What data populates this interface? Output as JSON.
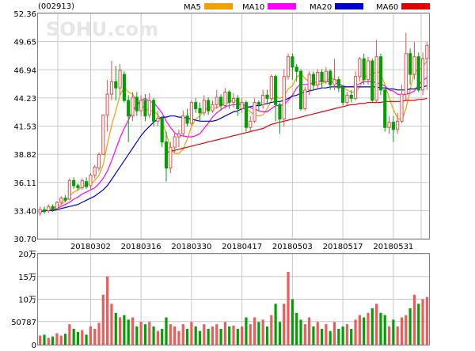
{
  "header": {
    "code": "(002913)",
    "watermark": "SOHU.com"
  },
  "legend": [
    {
      "name": "MA5",
      "color": "#f0a000"
    },
    {
      "name": "MA10",
      "color": "#ff00ff"
    },
    {
      "name": "MA20",
      "color": "#0000cc"
    },
    {
      "name": "MA60",
      "color": "#e00000"
    }
  ],
  "chart_data": [
    {
      "type": "candlestick",
      "ylim": [
        30.7,
        52.36
      ],
      "ytick_labels": [
        "52.36",
        "49.65",
        "46.94",
        "44.23",
        "41.53",
        "38.82",
        "36.11",
        "33.40",
        "30.70"
      ],
      "xtick_labels": [
        {
          "label": "20180302",
          "index": 12
        },
        {
          "label": "20180316",
          "index": 24
        },
        {
          "label": "20180330",
          "index": 36
        },
        {
          "label": "20180417",
          "index": 48
        },
        {
          "label": "20180503",
          "index": 60
        },
        {
          "label": "20180517",
          "index": 72
        },
        {
          "label": "20180531",
          "index": 84
        }
      ],
      "candles": [
        [
          33.2,
          33.5,
          32.9,
          33.8
        ],
        [
          33.5,
          33.3,
          33.1,
          33.8
        ],
        [
          33.4,
          33.8,
          33.2,
          34.0
        ],
        [
          33.8,
          33.5,
          33.3,
          34.0
        ],
        [
          33.6,
          34.2,
          33.5,
          34.3
        ],
        [
          34.2,
          34.6,
          34.0,
          34.8
        ],
        [
          34.6,
          34.4,
          34.2,
          34.9
        ],
        [
          34.5,
          36.3,
          34.4,
          36.5
        ],
        [
          36.3,
          35.8,
          35.5,
          36.6
        ],
        [
          35.8,
          35.6,
          35.3,
          36.0
        ],
        [
          35.6,
          36.3,
          35.4,
          36.5
        ],
        [
          36.2,
          35.7,
          35.5,
          36.6
        ],
        [
          35.8,
          36.8,
          35.4,
          37.0
        ],
        [
          36.8,
          37.6,
          36.5,
          37.8
        ],
        [
          37.5,
          38.8,
          37.2,
          39.0
        ],
        [
          38.8,
          42.6,
          38.8,
          42.6
        ],
        [
          42.6,
          44.6,
          41.0,
          46.0
        ],
        [
          44.6,
          45.8,
          44.0,
          47.8
        ],
        [
          45.8,
          45.2,
          44.0,
          47.3
        ],
        [
          45.2,
          46.9,
          44.5,
          47.5
        ],
        [
          46.5,
          44.0,
          43.8,
          46.8
        ],
        [
          44.0,
          42.5,
          40.0,
          44.5
        ],
        [
          42.5,
          44.3,
          42.0,
          44.8
        ],
        [
          44.3,
          43.0,
          42.5,
          44.8
        ],
        [
          43.0,
          44.0,
          42.5,
          44.5
        ],
        [
          44.0,
          42.5,
          42.0,
          44.6
        ],
        [
          42.6,
          44.0,
          42.3,
          44.7
        ],
        [
          44.0,
          42.0,
          41.5,
          44.2
        ],
        [
          42.0,
          42.3,
          41.5,
          43.0
        ],
        [
          42.3,
          40.0,
          39.5,
          42.5
        ],
        [
          40.0,
          37.5,
          36.2,
          41.0
        ],
        [
          37.5,
          39.5,
          37.0,
          40.0
        ],
        [
          39.5,
          40.5,
          39.0,
          41.0
        ],
        [
          40.5,
          40.8,
          39.5,
          41.2
        ],
        [
          40.8,
          42.5,
          40.5,
          43.0
        ],
        [
          42.5,
          41.8,
          41.5,
          43.2
        ],
        [
          41.8,
          43.8,
          41.6,
          44.0
        ],
        [
          43.8,
          43.2,
          42.8,
          44.2
        ],
        [
          43.2,
          42.8,
          42.0,
          43.8
        ],
        [
          42.8,
          44.0,
          42.5,
          44.5
        ],
        [
          44.0,
          43.0,
          42.6,
          44.3
        ],
        [
          43.0,
          43.6,
          42.8,
          44.0
        ],
        [
          43.6,
          44.3,
          43.2,
          45.0
        ],
        [
          44.3,
          43.5,
          43.0,
          44.6
        ],
        [
          43.5,
          44.8,
          43.2,
          45.2
        ],
        [
          44.8,
          43.8,
          43.2,
          45.0
        ],
        [
          43.8,
          44.2,
          43.3,
          44.7
        ],
        [
          44.2,
          43.2,
          42.5,
          44.5
        ],
        [
          43.2,
          43.8,
          42.8,
          44.2
        ],
        [
          43.8,
          41.4,
          41.0,
          44.0
        ],
        [
          41.4,
          42.0,
          41.0,
          42.5
        ],
        [
          42.0,
          43.8,
          41.8,
          44.2
        ],
        [
          43.8,
          43.6,
          43.0,
          44.0
        ],
        [
          43.6,
          44.5,
          43.2,
          45.0
        ],
        [
          44.5,
          44.2,
          43.6,
          45.0
        ],
        [
          44.2,
          46.3,
          44.0,
          46.5
        ],
        [
          46.3,
          43.6,
          42.0,
          46.5
        ],
        [
          43.6,
          42.2,
          40.8,
          43.8
        ],
        [
          42.2,
          46.3,
          41.5,
          47.0
        ],
        [
          46.3,
          48.2,
          46.0,
          48.5
        ],
        [
          48.2,
          47.2,
          46.0,
          48.5
        ],
        [
          47.2,
          46.8,
          45.8,
          47.5
        ],
        [
          46.8,
          43.2,
          43.0,
          47.0
        ],
        [
          43.2,
          45.0,
          43.0,
          45.3
        ],
        [
          45.0,
          46.5,
          44.5,
          46.8
        ],
        [
          46.5,
          45.5,
          45.0,
          46.8
        ],
        [
          45.5,
          46.7,
          45.2,
          47.0
        ],
        [
          46.7,
          45.8,
          45.2,
          47.0
        ],
        [
          45.8,
          46.8,
          45.6,
          47.2
        ],
        [
          46.8,
          45.5,
          45.0,
          47.0
        ],
        [
          45.5,
          46.0,
          45.0,
          48.0
        ],
        [
          46.0,
          45.2,
          44.8,
          46.3
        ],
        [
          45.2,
          43.8,
          43.5,
          45.5
        ],
        [
          43.8,
          44.5,
          43.5,
          44.8
        ],
        [
          44.5,
          44.2,
          43.8,
          45.0
        ],
        [
          44.2,
          46.3,
          44.0,
          46.8
        ],
        [
          46.3,
          48.0,
          45.8,
          48.2
        ],
        [
          48.0,
          46.0,
          45.5,
          48.5
        ],
        [
          46.0,
          47.8,
          45.5,
          48.2
        ],
        [
          47.8,
          44.0,
          43.8,
          48.0
        ],
        [
          44.0,
          48.2,
          43.8,
          49.8
        ],
        [
          48.2,
          45.0,
          44.5,
          48.5
        ],
        [
          45.0,
          41.4,
          41.0,
          45.2
        ],
        [
          41.4,
          41.9,
          40.8,
          42.5
        ],
        [
          41.9,
          41.2,
          40.0,
          42.5
        ],
        [
          41.2,
          42.0,
          40.8,
          42.8
        ],
        [
          42.0,
          44.6,
          41.8,
          45.5
        ],
        [
          44.6,
          48.5,
          44.0,
          50.5
        ],
        [
          48.5,
          46.5,
          45.5,
          49.0
        ],
        [
          46.5,
          48.2,
          46.0,
          49.6
        ],
        [
          48.2,
          45.0,
          44.8,
          48.6
        ],
        [
          45.0,
          48.0,
          44.5,
          48.6
        ],
        [
          48.0,
          49.3,
          45.0,
          49.6
        ]
      ],
      "ma5": [
        33.3,
        33.4,
        33.5,
        33.6,
        33.8,
        34.0,
        34.3,
        34.8,
        35.2,
        35.4,
        35.7,
        35.9,
        36.0,
        36.3,
        36.8,
        37.8,
        39.8,
        41.6,
        43.0,
        44.5,
        45.3,
        44.8,
        44.6,
        44.0,
        43.5,
        43.2,
        43.0,
        43.0,
        42.6,
        42.0,
        40.8,
        39.5,
        38.9,
        38.9,
        39.3,
        40.3,
        41.5,
        42.2,
        42.5,
        43.0,
        43.4,
        43.2,
        43.3,
        43.5,
        43.7,
        43.8,
        44.1,
        43.8,
        43.7,
        43.3,
        42.9,
        42.6,
        42.5,
        42.6,
        43.2,
        44.0,
        44.4,
        44.2,
        44.4,
        45.1,
        45.4,
        46.2,
        46.6,
        46.1,
        45.8,
        45.4,
        45.5,
        45.6,
        45.8,
        46.2,
        46.0,
        45.8,
        45.2,
        45.0,
        44.8,
        44.8,
        45.3,
        46.2,
        46.5,
        46.5,
        46.8,
        46.6,
        45.5,
        44.3,
        43.1,
        42.3,
        42.1,
        43.2,
        45.0,
        46.8,
        46.9,
        47.2,
        47.8
      ],
      "ma10": [
        33.3,
        33.4,
        33.4,
        33.5,
        33.6,
        33.8,
        34.0,
        34.2,
        34.5,
        34.7,
        35.0,
        35.2,
        35.4,
        35.6,
        36.0,
        36.5,
        37.2,
        38.2,
        39.3,
        40.4,
        41.3,
        42.1,
        43.0,
        43.5,
        44.0,
        44.2,
        43.9,
        43.8,
        43.3,
        42.8,
        42.0,
        41.4,
        40.9,
        40.6,
        40.6,
        40.5,
        40.5,
        40.6,
        40.8,
        41.3,
        41.8,
        42.4,
        42.8,
        43.1,
        43.4,
        43.5,
        43.6,
        43.6,
        43.6,
        43.5,
        43.3,
        43.2,
        43.0,
        42.9,
        42.9,
        43.2,
        43.5,
        43.5,
        43.6,
        44.0,
        44.5,
        45.2,
        45.6,
        45.5,
        45.6,
        45.7,
        45.8,
        45.9,
        45.8,
        45.8,
        45.7,
        45.6,
        45.4,
        45.3,
        45.3,
        45.4,
        45.6,
        45.8,
        45.8,
        45.8,
        45.7,
        45.6,
        45.4,
        45.0,
        44.9,
        44.6,
        44.5,
        44.6,
        44.7,
        44.9,
        45.5,
        45.9,
        46.2
      ],
      "ma20": [
        33.3,
        33.4,
        33.4,
        33.4,
        33.5,
        33.6,
        33.7,
        33.8,
        33.9,
        34.0,
        34.2,
        34.4,
        34.6,
        34.8,
        35.1,
        35.4,
        35.8,
        36.4,
        37.0,
        37.6,
        38.2,
        38.8,
        39.4,
        40.0,
        40.6,
        41.1,
        41.5,
        41.9,
        42.2,
        42.4,
        42.4,
        42.5,
        42.5,
        42.4,
        42.4,
        42.3,
        42.2,
        42.1,
        42.0,
        42.0,
        42.0,
        42.0,
        42.1,
        42.3,
        42.5,
        42.7,
        42.9,
        43.0,
        43.2,
        43.3,
        43.4,
        43.5,
        43.5,
        43.6,
        43.7,
        43.8,
        43.9,
        43.9,
        44.0,
        44.2,
        44.4,
        44.5,
        44.7,
        44.8,
        44.9,
        45.0,
        45.1,
        45.2,
        45.2,
        45.3,
        45.3,
        45.3,
        45.3,
        45.3,
        45.3,
        45.3,
        45.3,
        45.3,
        45.3,
        45.3,
        45.3,
        45.2,
        45.2,
        45.1,
        45.1,
        45.0,
        45.0,
        45.0,
        45.1,
        45.1,
        45.2,
        45.3,
        45.4
      ],
      "ma60": [
        null,
        null,
        null,
        null,
        null,
        null,
        null,
        null,
        null,
        null,
        null,
        null,
        null,
        null,
        null,
        null,
        null,
        null,
        null,
        null,
        null,
        null,
        null,
        null,
        null,
        null,
        null,
        null,
        null,
        null,
        39.0,
        39.1,
        39.2,
        39.3,
        39.4,
        39.5,
        39.6,
        39.7,
        39.8,
        39.9,
        40.0,
        40.1,
        40.2,
        40.3,
        40.4,
        40.5,
        40.6,
        40.7,
        40.8,
        40.9,
        41.0,
        41.1,
        41.2,
        41.3,
        41.5,
        41.7,
        41.8,
        41.9,
        42.0,
        42.1,
        42.2,
        42.3,
        42.4,
        42.5,
        42.6,
        42.7,
        42.8,
        42.9,
        43.0,
        43.1,
        43.2,
        43.3,
        43.4,
        43.5,
        43.6,
        43.6,
        43.7,
        43.7,
        43.8,
        43.8,
        43.8,
        43.8,
        43.9,
        43.9,
        43.9,
        43.9,
        43.9,
        44.0,
        44.0,
        44.0,
        44.1,
        44.1,
        44.2
      ]
    },
    {
      "type": "bar",
      "ylim": [
        0,
        200000
      ],
      "ytick_labels": [
        "20万",
        "15万",
        "10万",
        "50787",
        "0"
      ],
      "volume": [
        20000,
        22000,
        15000,
        18000,
        25000,
        20000,
        24000,
        45000,
        35000,
        28000,
        32000,
        22000,
        40000,
        35000,
        48000,
        110000,
        150000,
        90000,
        70000,
        60000,
        65000,
        55000,
        60000,
        40000,
        50000,
        45000,
        50000,
        40000,
        30000,
        35000,
        60000,
        45000,
        40000,
        30000,
        45000,
        35000,
        50000,
        40000,
        30000,
        45000,
        35000,
        40000,
        45000,
        35000,
        50000,
        40000,
        42000,
        35000,
        40000,
        60000,
        45000,
        60000,
        50000,
        55000,
        40000,
        65000,
        90000,
        50000,
        90000,
        160000,
        100000,
        70000,
        55000,
        45000,
        60000,
        40000,
        50000,
        35000,
        45000,
        30000,
        50000,
        35000,
        40000,
        45000,
        35000,
        55000,
        65000,
        60000,
        70000,
        80000,
        90000,
        70000,
        65000,
        40000,
        55000,
        40000,
        60000,
        65000,
        80000,
        110000,
        90000,
        100000,
        105000
      ]
    }
  ]
}
